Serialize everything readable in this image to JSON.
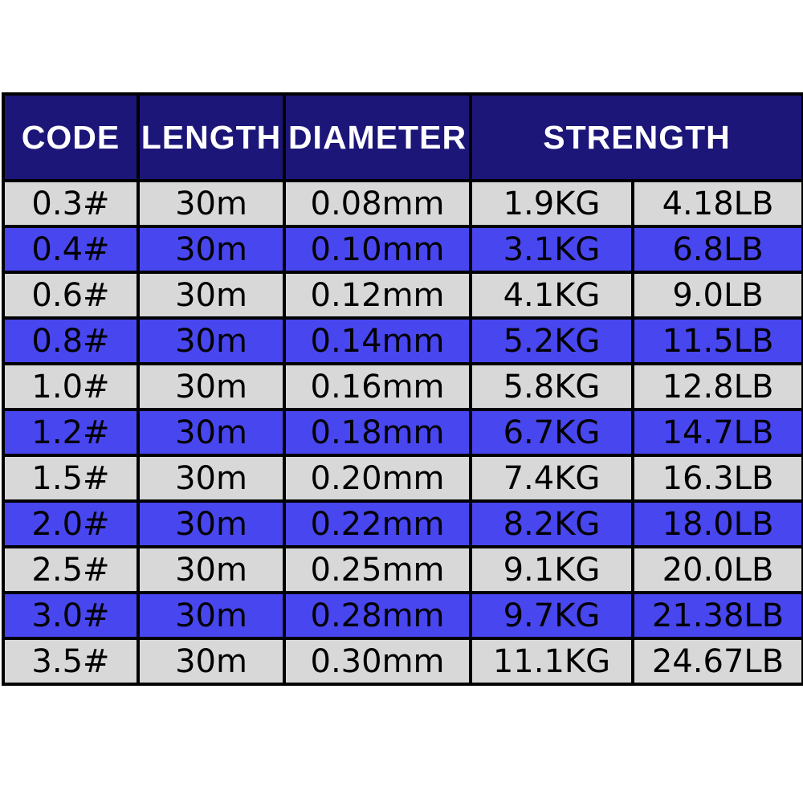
{
  "colors": {
    "header_bg": "#1c1679",
    "header_text": "#ffffff",
    "row_blue": "#4846ee",
    "row_gray": "#d8d8d8",
    "border": "#000000",
    "body_text": "#000000",
    "page_bg": "#ffffff"
  },
  "table": {
    "headers": {
      "code": "CODE",
      "length": "LENGTH",
      "diameter": "DIAMETER",
      "strength": "STRENGTH"
    },
    "rows": [
      {
        "code": "0.3#",
        "length": "30m",
        "diameter": "0.08mm",
        "kg": "1.9KG",
        "lb": "4.18LB"
      },
      {
        "code": "0.4#",
        "length": "30m",
        "diameter": "0.10mm",
        "kg": "3.1KG",
        "lb": "6.8LB"
      },
      {
        "code": "0.6#",
        "length": "30m",
        "diameter": "0.12mm",
        "kg": "4.1KG",
        "lb": "9.0LB"
      },
      {
        "code": "0.8#",
        "length": "30m",
        "diameter": "0.14mm",
        "kg": "5.2KG",
        "lb": "11.5LB"
      },
      {
        "code": "1.0#",
        "length": "30m",
        "diameter": "0.16mm",
        "kg": "5.8KG",
        "lb": "12.8LB"
      },
      {
        "code": "1.2#",
        "length": "30m",
        "diameter": "0.18mm",
        "kg": "6.7KG",
        "lb": "14.7LB"
      },
      {
        "code": "1.5#",
        "length": "30m",
        "diameter": "0.20mm",
        "kg": "7.4KG",
        "lb": "16.3LB"
      },
      {
        "code": "2.0#",
        "length": "30m",
        "diameter": "0.22mm",
        "kg": "8.2KG",
        "lb": "18.0LB"
      },
      {
        "code": "2.5#",
        "length": "30m",
        "diameter": "0.25mm",
        "kg": "9.1KG",
        "lb": "20.0LB"
      },
      {
        "code": "3.0#",
        "length": "30m",
        "diameter": "0.28mm",
        "kg": "9.7KG",
        "lb": "21.38LB"
      },
      {
        "code": "3.5#",
        "length": "30m",
        "diameter": "0.30mm",
        "kg": "11.1KG",
        "lb": "24.67LB"
      }
    ]
  },
  "chart_data": {
    "type": "table",
    "title": "Fishing line specification table",
    "columns": [
      "CODE",
      "LENGTH",
      "DIAMETER",
      "STRENGTH (KG)",
      "STRENGTH (LB)"
    ],
    "rows": [
      [
        "0.3#",
        "30m",
        "0.08mm",
        "1.9KG",
        "4.18LB"
      ],
      [
        "0.4#",
        "30m",
        "0.10mm",
        "3.1KG",
        "6.8LB"
      ],
      [
        "0.6#",
        "30m",
        "0.12mm",
        "4.1KG",
        "9.0LB"
      ],
      [
        "0.8#",
        "30m",
        "0.14mm",
        "5.2KG",
        "11.5LB"
      ],
      [
        "1.0#",
        "30m",
        "0.16mm",
        "5.8KG",
        "12.8LB"
      ],
      [
        "1.2#",
        "30m",
        "0.18mm",
        "6.7KG",
        "14.7LB"
      ],
      [
        "1.5#",
        "30m",
        "0.20mm",
        "7.4KG",
        "16.3LB"
      ],
      [
        "2.0#",
        "30m",
        "0.22mm",
        "8.2KG",
        "18.0LB"
      ],
      [
        "2.5#",
        "30m",
        "0.25mm",
        "9.1KG",
        "20.0LB"
      ],
      [
        "3.0#",
        "30m",
        "0.28mm",
        "9.7KG",
        "21.38LB"
      ],
      [
        "3.5#",
        "30m",
        "0.30mm",
        "11.1KG",
        "24.67LB"
      ]
    ],
    "layout": {
      "row_striping": [
        "gray",
        "blue"
      ],
      "header_spans": {
        "STRENGTH": 2
      },
      "grid": true
    }
  }
}
